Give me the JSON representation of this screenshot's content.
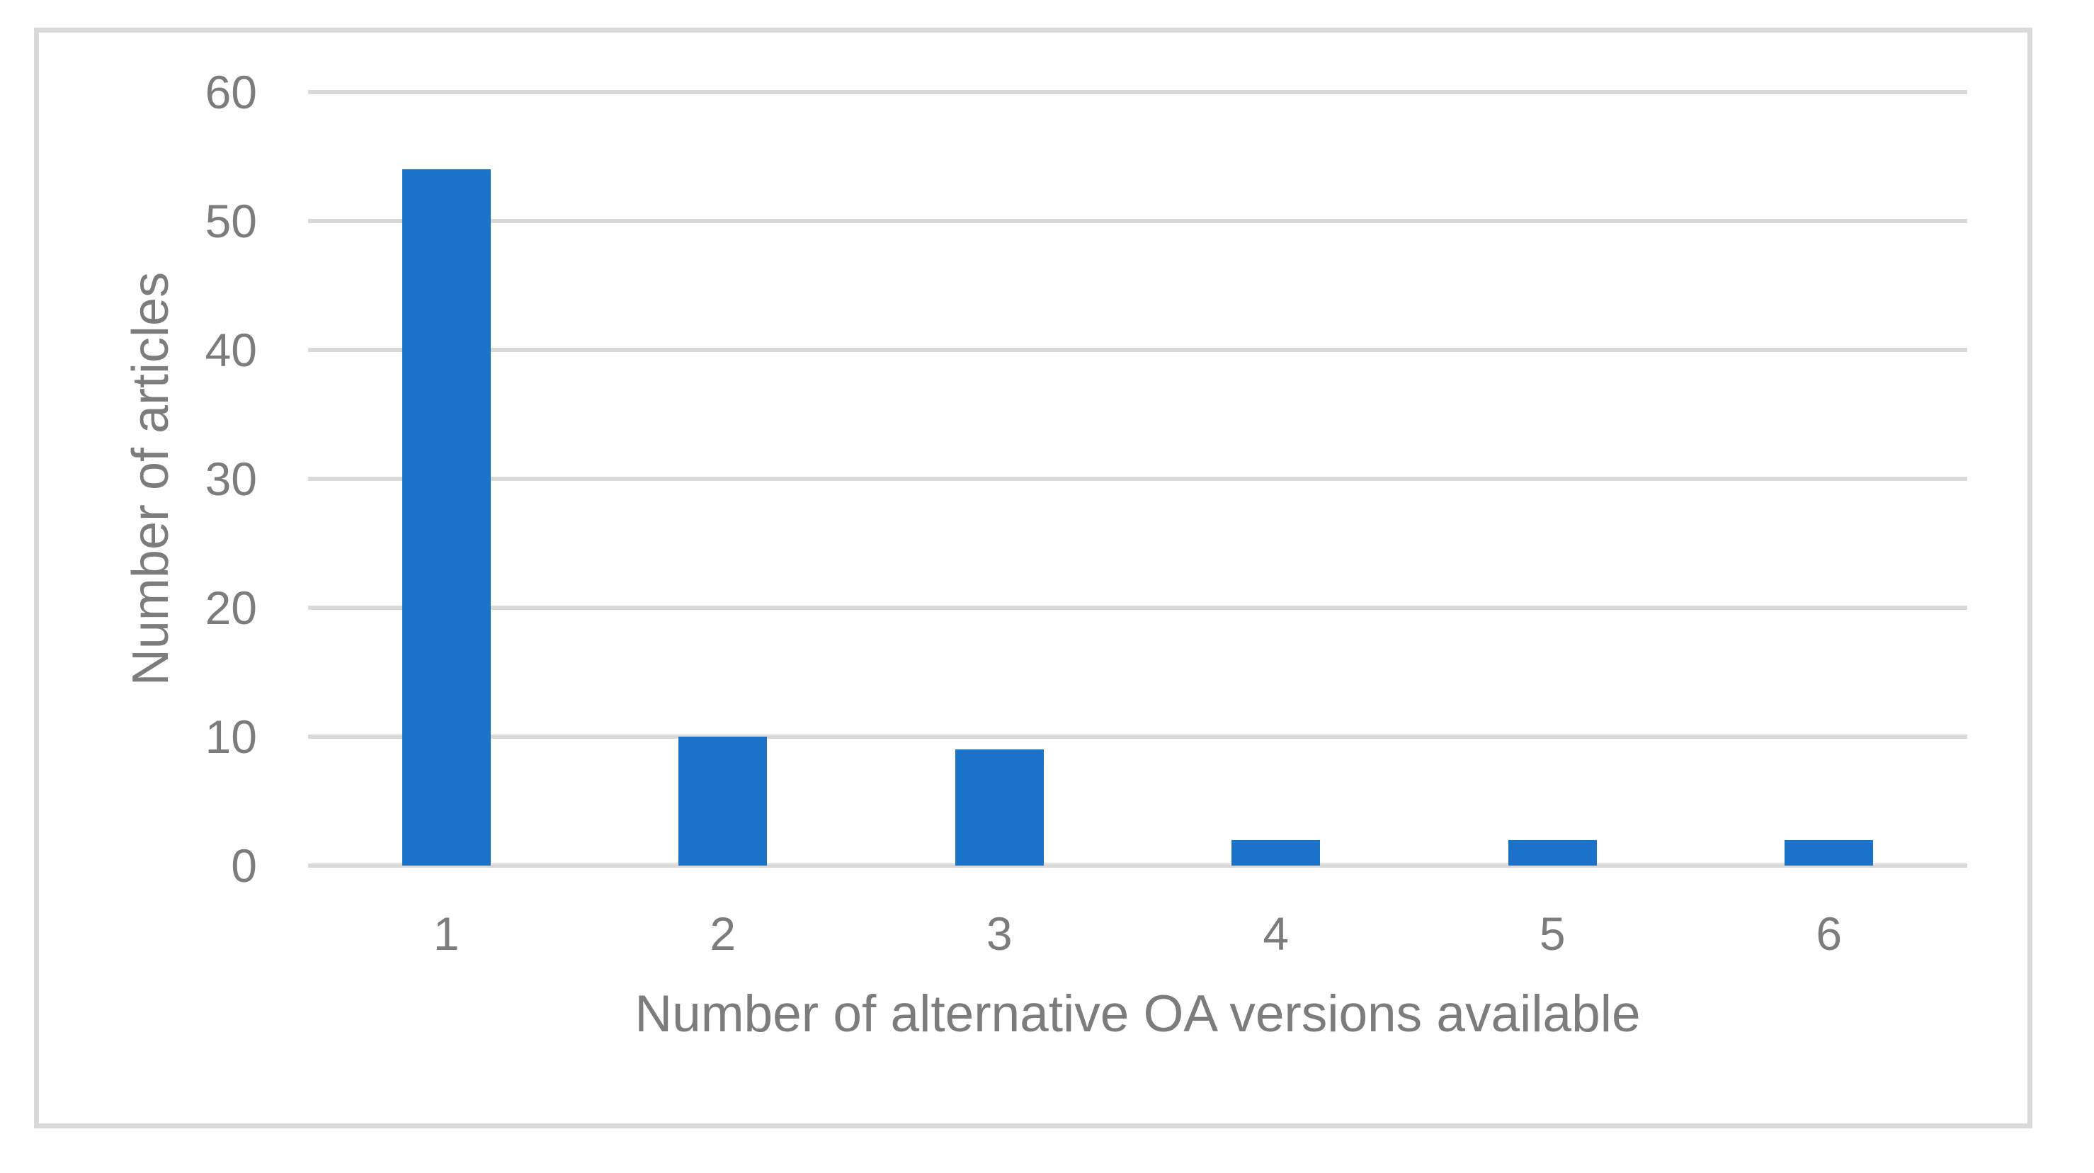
{
  "chart_data": {
    "type": "bar",
    "categories": [
      "1",
      "2",
      "3",
      "4",
      "5",
      "6"
    ],
    "values": [
      54,
      10,
      9,
      2,
      2,
      2
    ],
    "title": "",
    "xlabel": "Number of alternative OA versions available",
    "ylabel": "Number of articles",
    "ylim": [
      0,
      60
    ],
    "yticks": [
      0,
      10,
      20,
      30,
      40,
      50,
      60
    ],
    "grid": "horizontal",
    "legend": "none",
    "bar_color": "#1a73c8",
    "gridline_color": "#d9d9d9",
    "frame_border_color": "#d9d9d9",
    "text_color": "#7c7c7c",
    "background_color": "#ffffff"
  }
}
